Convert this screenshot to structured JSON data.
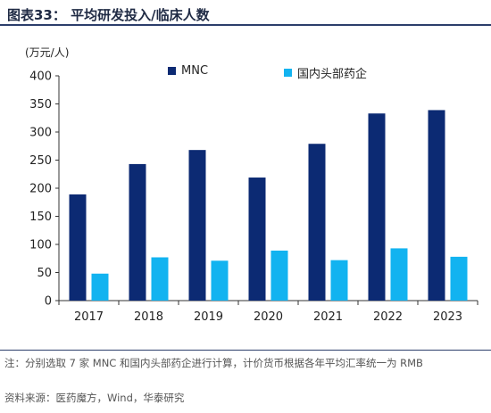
{
  "header": {
    "title": "图表33：  平均研发投入/临床人数"
  },
  "colors": {
    "mnc": "#0c2a73",
    "domestic": "#12b3f0",
    "axis": "#333333",
    "rule": "#2c3e6b"
  },
  "chart_data": {
    "type": "bar",
    "title": "",
    "ylabel": "(万元/人)",
    "xlabel": "",
    "ylim": [
      0,
      400
    ],
    "yticks": [
      0,
      50,
      100,
      150,
      200,
      250,
      300,
      350,
      400
    ],
    "categories": [
      "2017",
      "2018",
      "2019",
      "2020",
      "2021",
      "2022",
      "2023"
    ],
    "grid": false,
    "legend_position": "top",
    "series": [
      {
        "name": "MNC",
        "values": [
          189,
          243,
          268,
          219,
          279,
          333,
          339
        ]
      },
      {
        "name": "国内头部药企",
        "values": [
          48,
          77,
          71,
          89,
          72,
          93,
          78
        ]
      }
    ]
  },
  "footer": {
    "note": "注：分别选取 7 家 MNC 和国内头部药企进行计算，计价货币根据各年平均汇率统一为 RMB",
    "source": "资料来源：医药魔方，Wind，华泰研究"
  }
}
